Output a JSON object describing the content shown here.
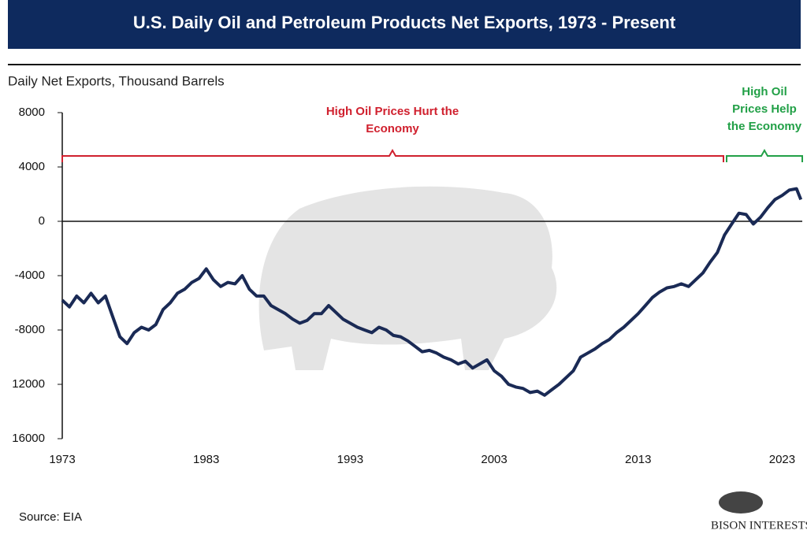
{
  "chart_data": {
    "type": "line",
    "title": "U.S. Daily Oil and Petroleum Products Net Exports, 1973 - Present",
    "y_label": "Daily Net Exports, Thousand Barrels",
    "annotations": [
      {
        "lines": [
          "High Oil Prices Hurt the",
          "Economy"
        ],
        "color": "#d0202e"
      },
      {
        "lines": [
          "High Oil",
          "Prices Help",
          "the Economy"
        ],
        "color": "#22a047"
      }
    ],
    "xlim": [
      1973,
      2024.4
    ],
    "xticks": [
      1973,
      1983,
      1993,
      2003,
      2013,
      2023
    ],
    "ylim": [
      -16000,
      8000
    ],
    "yticks": [
      8000,
      4000,
      0,
      -4000,
      -8000,
      {
        "value": -12000,
        "label": "12000"
      },
      {
        "value": -16000,
        "label": "16000"
      }
    ],
    "x": [
      1973,
      1973.5,
      1974,
      1974.5,
      1975,
      1975.5,
      1976,
      1976.5,
      1977,
      1977.5,
      1978,
      1978.5,
      1979,
      1979.5,
      1980,
      1980.5,
      1981,
      1981.5,
      1982,
      1982.5,
      1983,
      1983.5,
      1984,
      1984.5,
      1985,
      1985.5,
      1986,
      1986.5,
      1987,
      1987.5,
      1988,
      1988.5,
      1989,
      1989.5,
      1990,
      1990.5,
      1991,
      1991.5,
      1992,
      1992.5,
      1993,
      1993.5,
      1994,
      1994.5,
      1995,
      1995.5,
      1996,
      1996.5,
      1997,
      1997.5,
      1998,
      1998.5,
      1999,
      1999.5,
      2000,
      2000.5,
      2001,
      2001.5,
      2002,
      2002.5,
      2003,
      2003.5,
      2004,
      2004.5,
      2005,
      2005.5,
      2006,
      2006.5,
      2007,
      2007.5,
      2008,
      2008.5,
      2009,
      2009.5,
      2010,
      2010.5,
      2011,
      2011.5,
      2012,
      2012.5,
      2013,
      2013.5,
      2014,
      2014.5,
      2015,
      2015.5,
      2016,
      2016.5,
      2017,
      2017.5,
      2018,
      2018.5,
      2019,
      2019.5,
      2020,
      2020.5,
      2021,
      2021.5,
      2022,
      2022.5,
      2023,
      2023.5,
      2024,
      2024.3
    ],
    "series": [
      {
        "name": "Net Exports",
        "color": "#1a2a55",
        "values": [
          -5800,
          -6300,
          -5500,
          -6000,
          -5300,
          -6000,
          -5500,
          -7000,
          -8500,
          -9000,
          -8200,
          -7800,
          -8000,
          -7600,
          -6500,
          -6000,
          -5300,
          -5000,
          -4500,
          -4200,
          -3500,
          -4300,
          -4800,
          -4500,
          -4600,
          -4000,
          -5000,
          -5500,
          -5500,
          -6200,
          -6500,
          -6800,
          -7200,
          -7500,
          -7300,
          -6800,
          -6800,
          -6200,
          -6700,
          -7200,
          -7500,
          -7800,
          -8000,
          -8200,
          -7800,
          -8000,
          -8400,
          -8500,
          -8800,
          -9200,
          -9600,
          -9500,
          -9700,
          -10000,
          -10200,
          -10500,
          -10300,
          -10800,
          -10500,
          -10200,
          -11000,
          -11400,
          -12000,
          -12200,
          -12300,
          -12600,
          -12500,
          -12800,
          -12400,
          -12000,
          -11500,
          -11000,
          -10000,
          -9700,
          -9400,
          -9000,
          -8700,
          -8200,
          -7800,
          -7300,
          -6800,
          -6200,
          -5600,
          -5200,
          -4900,
          -4800,
          -4600,
          -4800,
          -4300,
          -3800,
          -3000,
          -2300,
          -1000,
          -200,
          600,
          500,
          -200,
          300,
          1000,
          1600,
          1900,
          2300,
          2400,
          1600
        ]
      }
    ]
  },
  "source": "Source: EIA",
  "logo": "BISON INTERESTS"
}
